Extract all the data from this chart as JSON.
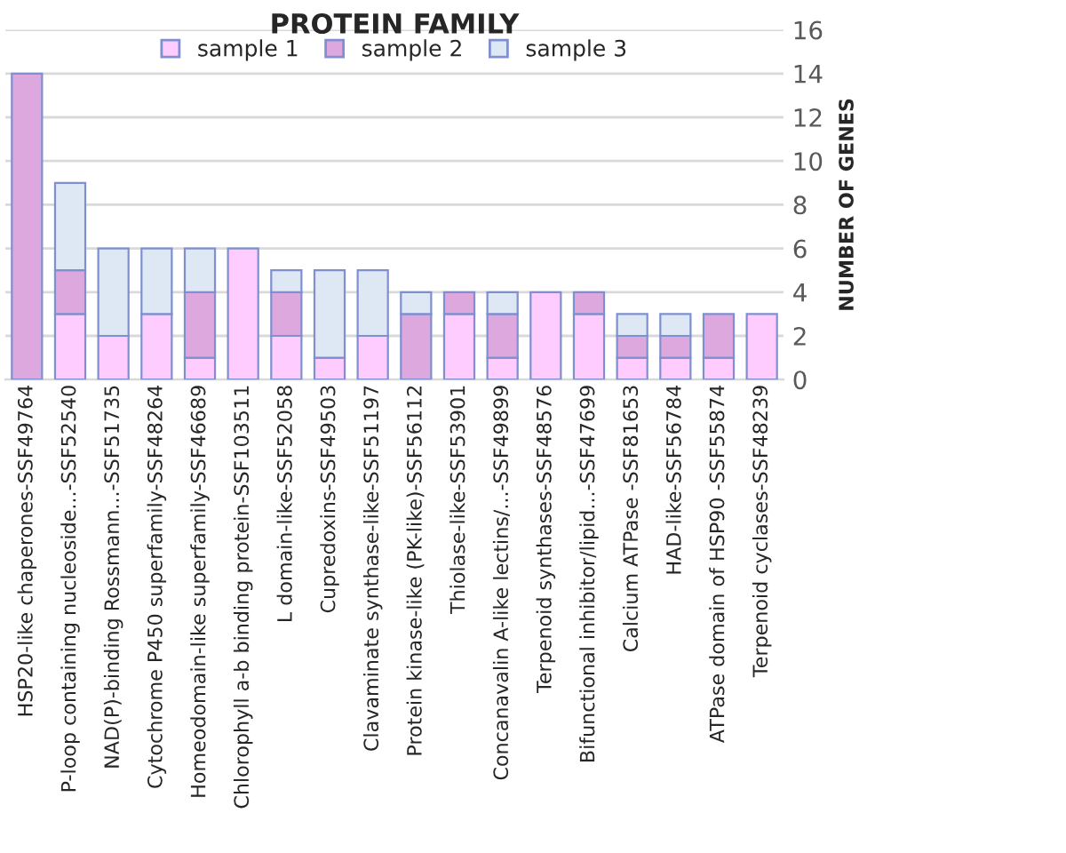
{
  "chart_data": {
    "type": "bar",
    "title": "PROTEIN FAMILY",
    "ylabel": "NUMBER OF GENES",
    "stacked": true,
    "categories": [
      "HSP20-like chaperones-SSF49764",
      "P-loop containing nucleoside...-SSF52540",
      "NAD(P)-binding Rossmann...-SSF51735",
      "Cytochrome P450 superfamily-SSF48264",
      "Homeodomain-like superfamily-SSF46689",
      "Chlorophyll a-b binding protein-SSF103511",
      "L domain-like-SSF52058",
      "Cupredoxins-SSF49503",
      "Clavaminate synthase-like-SSF51197",
      "Protein kinase-like (PK-like)-SSF56112",
      "Thiolase-like-SSF53901",
      "Concanavalin A-like lectins/...-SSF49899",
      "Terpenoid synthases-SSF48576",
      "Bifunctional inhibitor/lipid...-SSF47699",
      "Calcium ATPase -SSF81653",
      "HAD-like-SSF56784",
      "ATPase domain of HSP90 -SSF55874",
      "Terpenoid cyclases-SSF48239"
    ],
    "series": [
      {
        "name": "sample 1",
        "color": "#ffccff",
        "values": [
          0,
          3,
          2,
          3,
          1,
          6,
          2,
          1,
          2,
          0,
          3,
          1,
          4,
          3,
          1,
          1,
          1,
          3
        ]
      },
      {
        "name": "sample 2",
        "color": "#dda8dd",
        "values": [
          14,
          2,
          0,
          0,
          3,
          0,
          2,
          0,
          0,
          3,
          1,
          2,
          0,
          1,
          1,
          1,
          2,
          0
        ]
      },
      {
        "name": "sample 3",
        "color": "#dde8f4",
        "values": [
          0,
          4,
          4,
          3,
          2,
          0,
          1,
          4,
          3,
          1,
          0,
          1,
          0,
          0,
          1,
          1,
          0,
          0
        ]
      }
    ],
    "ylim": [
      0,
      16
    ],
    "yticks": [
      0,
      2,
      4,
      6,
      8,
      10,
      12,
      14,
      16
    ],
    "grid": "y",
    "legend": "top"
  }
}
